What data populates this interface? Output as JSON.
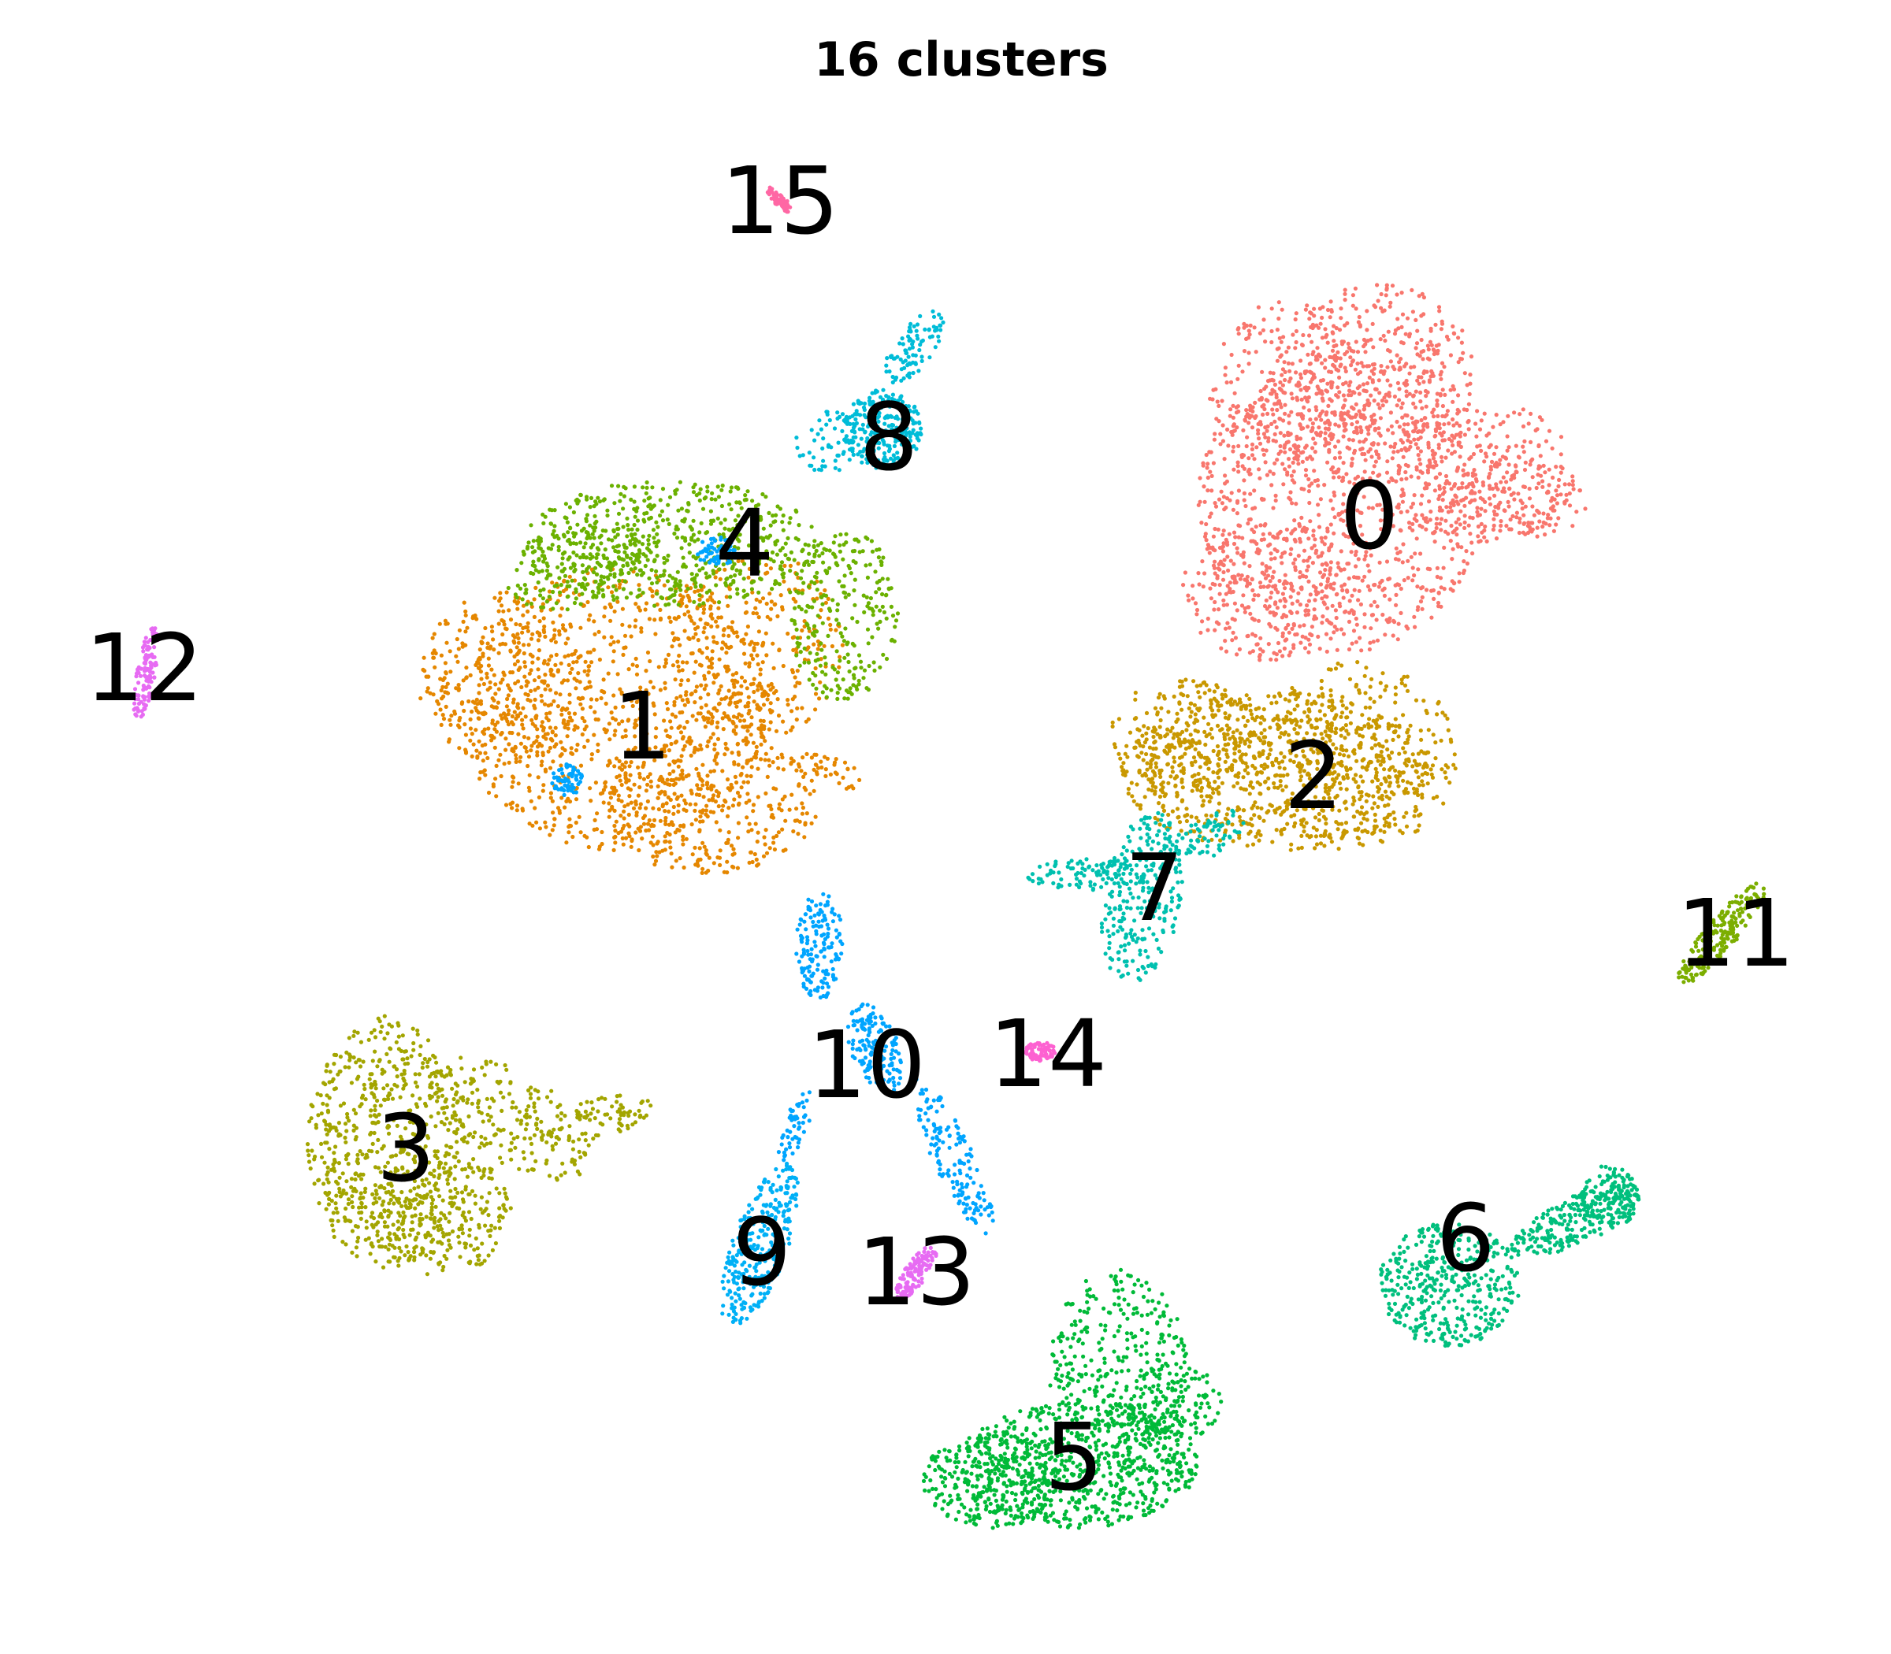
{
  "chart_data": {
    "type": "scatter",
    "title": "16 clusters",
    "xlabel": "",
    "ylabel": "",
    "axes_visible": false,
    "grid": false,
    "legend": "none (labels placed on clusters)",
    "point_size": "small",
    "clusters": [
      {
        "id": "0",
        "color": "#F8766D",
        "center": [
          1.0,
          0.73
        ]
      },
      {
        "id": "1",
        "color": "#E58700",
        "center": [
          -4.2,
          0.33
        ]
      },
      {
        "id": "2",
        "color": "#C99800",
        "center": [
          0.6,
          0.18
        ]
      },
      {
        "id": "3",
        "color": "#A3A500",
        "center": [
          -5.2,
          -0.55
        ]
      },
      {
        "id": "4",
        "color": "#6BB100",
        "center": [
          -3.2,
          0.67
        ]
      },
      {
        "id": "5",
        "color": "#00BA38",
        "center": [
          -0.9,
          -0.97
        ]
      },
      {
        "id": "6",
        "color": "#00BF7D",
        "center": [
          2.3,
          -0.68
        ]
      },
      {
        "id": "7",
        "color": "#00C0AF",
        "center": [
          -0.7,
          -0.06
        ]
      },
      {
        "id": "8",
        "color": "#00BCD8",
        "center": [
          -2.5,
          0.86
        ]
      },
      {
        "id": "9",
        "color": "#00B0F6",
        "center": [
          -3.3,
          -0.75
        ]
      },
      {
        "id": "10",
        "color": "#00A5FF",
        "center": [
          -2.7,
          -0.36
        ]
      },
      {
        "id": "11",
        "color": "#7CAE00",
        "center": [
          4.4,
          -0.06
        ]
      },
      {
        "id": "12",
        "color": "#E76BF3",
        "center": [
          -8.0,
          0.6
        ]
      },
      {
        "id": "13",
        "color": "#E76BF3",
        "center": [
          -2.0,
          -0.8
        ]
      },
      {
        "id": "14",
        "color": "#FD61D1",
        "center": [
          -1.5,
          -0.38
        ]
      },
      {
        "id": "15",
        "color": "#FF67A4",
        "center": [
          -3.6,
          1.3
        ]
      }
    ]
  }
}
